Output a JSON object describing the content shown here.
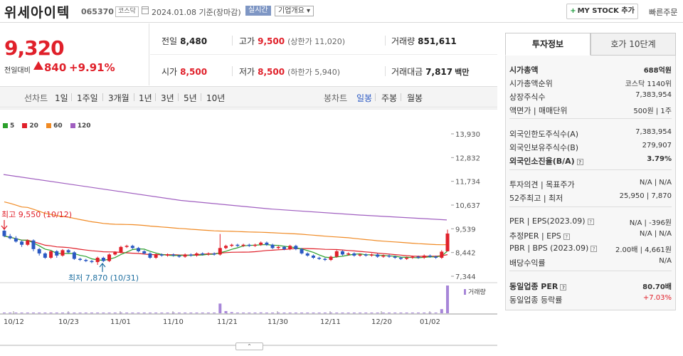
{
  "header": {
    "title": "위세아이텍",
    "code": "065370",
    "market": "코스닥",
    "date": "2024.01.08 기준(장마감)",
    "realtime": "실시간",
    "corp_info": "기업개요 ▾",
    "mystock_label": "MY STOCK 추가",
    "quick_label": "빠른주문"
  },
  "price": {
    "current": "9,320",
    "change_label": "전일대비",
    "change": "840",
    "percent": "+9.91%"
  },
  "stats": {
    "prev_label": "전일",
    "prev": "8,480",
    "high_label": "고가",
    "high": "9,500",
    "upper_limit": "(상한가 11,020)",
    "volume_label": "거래량",
    "volume": "851,611",
    "open_label": "시가",
    "open": "8,500",
    "low_label": "저가",
    "low": "8,500",
    "lower_limit": "(하한가 5,940)",
    "amount_label": "거래대금",
    "amount": "7,817",
    "amount_unit": "백만"
  },
  "range": {
    "line_label": "선차트",
    "ranges": [
      "1일",
      "1주일",
      "3개월",
      "1년",
      "3년",
      "5년",
      "10년"
    ],
    "candle_label": "봉차트",
    "candles": [
      "일봉",
      "주봉",
      "월봉"
    ],
    "selected_candle": "일봉"
  },
  "colors": {
    "up": "#e0202a",
    "down": "#2b59c3",
    "ma5": "#2ca02c",
    "ma20": "#e0202a",
    "ma60": "#f08a24",
    "ma120": "#a05fc0",
    "volume": "#a786d8"
  },
  "chart_data": {
    "type": "candlestick",
    "legend": [
      "5",
      "20",
      "60",
      "120"
    ],
    "y_ticks": [
      "13,930",
      "12,832",
      "11,734",
      "10,637",
      "9,539",
      "8,442",
      "7,344"
    ],
    "x_ticks": [
      "10/12",
      "10/23",
      "11/01",
      "11/10",
      "11/21",
      "11/30",
      "12/11",
      "12/20",
      "01/02"
    ],
    "ylim": [
      7344,
      13930
    ],
    "annotations": {
      "high": "최고 9,550 (10/12)",
      "low": "최저 7,870 (10/31)"
    },
    "volume_label": "거래량",
    "candles": [
      {
        "o": 9450,
        "c": 9200,
        "h": 9550,
        "l": 9150
      },
      {
        "o": 9200,
        "c": 9100,
        "h": 9300,
        "l": 9050
      },
      {
        "o": 9100,
        "c": 8950,
        "h": 9200,
        "l": 8900
      },
      {
        "o": 8950,
        "c": 8800,
        "h": 9000,
        "l": 8700
      },
      {
        "o": 8800,
        "c": 9000,
        "h": 9050,
        "l": 8750
      },
      {
        "o": 9000,
        "c": 8600,
        "h": 9050,
        "l": 8500
      },
      {
        "o": 8600,
        "c": 8400,
        "h": 8650,
        "l": 8300
      },
      {
        "o": 8400,
        "c": 8200,
        "h": 8450,
        "l": 8150
      },
      {
        "o": 8200,
        "c": 8500,
        "h": 8550,
        "l": 8150
      },
      {
        "o": 8500,
        "c": 8300,
        "h": 8550,
        "l": 8200
      },
      {
        "o": 8300,
        "c": 8550,
        "h": 8600,
        "l": 8250
      },
      {
        "o": 8550,
        "c": 8450,
        "h": 8600,
        "l": 8400
      },
      {
        "o": 8450,
        "c": 8150,
        "h": 8500,
        "l": 8100
      },
      {
        "o": 8150,
        "c": 8100,
        "h": 8200,
        "l": 8050
      },
      {
        "o": 8100,
        "c": 8050,
        "h": 8150,
        "l": 8000
      },
      {
        "o": 8050,
        "c": 8000,
        "h": 8100,
        "l": 7950
      },
      {
        "o": 8000,
        "c": 8200,
        "h": 8250,
        "l": 7870
      },
      {
        "o": 8200,
        "c": 8050,
        "h": 8250,
        "l": 8000
      },
      {
        "o": 8050,
        "c": 8350,
        "h": 8400,
        "l": 8000
      },
      {
        "o": 8350,
        "c": 8450,
        "h": 8500,
        "l": 8300
      },
      {
        "o": 8450,
        "c": 8700,
        "h": 8750,
        "l": 8400
      },
      {
        "o": 8700,
        "c": 8750,
        "h": 8800,
        "l": 8650
      },
      {
        "o": 8750,
        "c": 8650,
        "h": 8800,
        "l": 8600
      },
      {
        "o": 8650,
        "c": 8500,
        "h": 8700,
        "l": 8450
      },
      {
        "o": 8500,
        "c": 8400,
        "h": 8550,
        "l": 8350
      },
      {
        "o": 8400,
        "c": 8200,
        "h": 8450,
        "l": 8150
      },
      {
        "o": 8200,
        "c": 8350,
        "h": 8400,
        "l": 8150
      },
      {
        "o": 8350,
        "c": 8300,
        "h": 8400,
        "l": 8250
      },
      {
        "o": 8300,
        "c": 8350,
        "h": 8400,
        "l": 8250
      },
      {
        "o": 8350,
        "c": 8300,
        "h": 8400,
        "l": 8250
      },
      {
        "o": 8300,
        "c": 8250,
        "h": 8350,
        "l": 8200
      },
      {
        "o": 8250,
        "c": 8350,
        "h": 8400,
        "l": 8200
      },
      {
        "o": 8350,
        "c": 8300,
        "h": 8400,
        "l": 8250
      },
      {
        "o": 8300,
        "c": 8400,
        "h": 8450,
        "l": 8250
      },
      {
        "o": 8400,
        "c": 8350,
        "h": 8450,
        "l": 8300
      },
      {
        "o": 8350,
        "c": 8400,
        "h": 8450,
        "l": 8300
      },
      {
        "o": 8400,
        "c": 8350,
        "h": 8450,
        "l": 8300
      },
      {
        "o": 8350,
        "c": 8650,
        "h": 9300,
        "l": 8300
      },
      {
        "o": 8650,
        "c": 8750,
        "h": 8800,
        "l": 8600
      },
      {
        "o": 8750,
        "c": 8800,
        "h": 8850,
        "l": 8700
      },
      {
        "o": 8800,
        "c": 8750,
        "h": 8850,
        "l": 8700
      },
      {
        "o": 8750,
        "c": 8800,
        "h": 8850,
        "l": 8700
      },
      {
        "o": 8800,
        "c": 8750,
        "h": 8850,
        "l": 8700
      },
      {
        "o": 8750,
        "c": 8800,
        "h": 8850,
        "l": 8700
      },
      {
        "o": 8800,
        "c": 8900,
        "h": 8950,
        "l": 8750
      },
      {
        "o": 8900,
        "c": 8800,
        "h": 8950,
        "l": 8750
      },
      {
        "o": 8800,
        "c": 8650,
        "h": 8850,
        "l": 8600
      },
      {
        "o": 8650,
        "c": 8700,
        "h": 8750,
        "l": 8600
      },
      {
        "o": 8700,
        "c": 8600,
        "h": 8750,
        "l": 8550
      },
      {
        "o": 8600,
        "c": 8750,
        "h": 8800,
        "l": 8550
      },
      {
        "o": 8750,
        "c": 8600,
        "h": 8800,
        "l": 8550
      },
      {
        "o": 8600,
        "c": 8400,
        "h": 8650,
        "l": 8350
      },
      {
        "o": 8400,
        "c": 8300,
        "h": 8450,
        "l": 8250
      },
      {
        "o": 8300,
        "c": 8200,
        "h": 8350,
        "l": 8150
      },
      {
        "o": 8200,
        "c": 8150,
        "h": 8250,
        "l": 8100
      },
      {
        "o": 8150,
        "c": 8100,
        "h": 8200,
        "l": 8050
      },
      {
        "o": 8100,
        "c": 8250,
        "h": 8300,
        "l": 8050
      },
      {
        "o": 8250,
        "c": 8500,
        "h": 8550,
        "l": 8200
      },
      {
        "o": 8500,
        "c": 8350,
        "h": 8550,
        "l": 8300
      },
      {
        "o": 8350,
        "c": 8400,
        "h": 8450,
        "l": 8300
      },
      {
        "o": 8400,
        "c": 8300,
        "h": 8450,
        "l": 8250
      },
      {
        "o": 8300,
        "c": 8350,
        "h": 8400,
        "l": 8250
      },
      {
        "o": 8350,
        "c": 8300,
        "h": 8400,
        "l": 8250
      },
      {
        "o": 8300,
        "c": 8350,
        "h": 8400,
        "l": 8250
      },
      {
        "o": 8350,
        "c": 8250,
        "h": 8400,
        "l": 8200
      },
      {
        "o": 8250,
        "c": 8300,
        "h": 8350,
        "l": 8200
      },
      {
        "o": 8300,
        "c": 8250,
        "h": 8350,
        "l": 8200
      },
      {
        "o": 8250,
        "c": 8200,
        "h": 8300,
        "l": 8150
      },
      {
        "o": 8200,
        "c": 8150,
        "h": 8250,
        "l": 8100
      },
      {
        "o": 8150,
        "c": 8200,
        "h": 8250,
        "l": 8100
      },
      {
        "o": 8200,
        "c": 8250,
        "h": 8300,
        "l": 8150
      },
      {
        "o": 8250,
        "c": 8200,
        "h": 8300,
        "l": 8150
      },
      {
        "o": 8200,
        "c": 8300,
        "h": 8350,
        "l": 8150
      },
      {
        "o": 8300,
        "c": 8250,
        "h": 8350,
        "l": 8200
      },
      {
        "o": 8250,
        "c": 8200,
        "h": 8300,
        "l": 8150
      },
      {
        "o": 8200,
        "c": 8480,
        "h": 8550,
        "l": 8150
      },
      {
        "o": 8500,
        "c": 9320,
        "h": 9500,
        "l": 8500
      }
    ],
    "ma120": [
      12050,
      11450,
      10850,
      10460,
      10180,
      9950
    ],
    "volume": [
      0.02,
      0.02,
      0.01,
      0.01,
      0.01,
      0.02,
      0.01,
      0.01,
      0.02,
      0.01,
      0.01,
      0.01,
      0.01,
      0.01,
      0.01,
      0.01,
      0.02,
      0.01,
      0.01,
      0.01,
      0.02,
      0.01,
      0.01,
      0.01,
      0.01,
      0.01,
      0.01,
      0.01,
      0.01,
      0.01,
      0.01,
      0.01,
      0.01,
      0.01,
      0.01,
      0.01,
      0.01,
      0.35,
      0.08,
      0.04,
      0.02,
      0.02,
      0.02,
      0.02,
      0.03,
      0.02,
      0.02,
      0.02,
      0.01,
      0.02,
      0.01,
      0.01,
      0.01,
      0.01,
      0.01,
      0.01,
      0.01,
      0.02,
      0.01,
      0.01,
      0.01,
      0.01,
      0.01,
      0.01,
      0.01,
      0.01,
      0.01,
      0.01,
      0.01,
      0.01,
      0.01,
      0.01,
      0.01,
      0.01,
      0.01,
      0.15,
      1.0
    ]
  },
  "side": {
    "tab_active": "투자정보",
    "tab_inactive": "호가 10단계",
    "rows": [
      {
        "k": "시가총액",
        "v": "688억원",
        "bold": true
      },
      {
        "k": "시가총액순위",
        "v": "코스닥 1140위"
      },
      {
        "k": "상장주식수",
        "v": "7,383,954"
      },
      {
        "k": "액면가 | 매매단위",
        "v": "500원 | 1주"
      },
      {
        "k": "외국인한도주식수(A)",
        "v": "7,383,954"
      },
      {
        "k": "외국인보유주식수(B)",
        "v": "279,907"
      },
      {
        "k": "외국인소진율(B/A)",
        "v": "3.79%",
        "bold": true
      },
      {
        "k": "투자의견 | 목표주가",
        "v": "N/A | N/A"
      },
      {
        "k": "52주최고 | 최저",
        "v": "25,950 | 7,870"
      },
      {
        "k": "PER | EPS(2023.09)",
        "v": "N/A | -396원"
      },
      {
        "k": "추정PER | EPS",
        "v": "N/A | N/A"
      },
      {
        "k": "PBR | BPS (2023.09)",
        "v": "2.00배 | 4,661원"
      },
      {
        "k": "배당수익률",
        "v": "N/A"
      },
      {
        "k": "동일업종 PER",
        "v": "80.70배",
        "bold": true
      },
      {
        "k": "동일업종 등락률",
        "v": "+7.03%",
        "red": true
      }
    ]
  },
  "pager": {
    "knob": "⌃"
  }
}
